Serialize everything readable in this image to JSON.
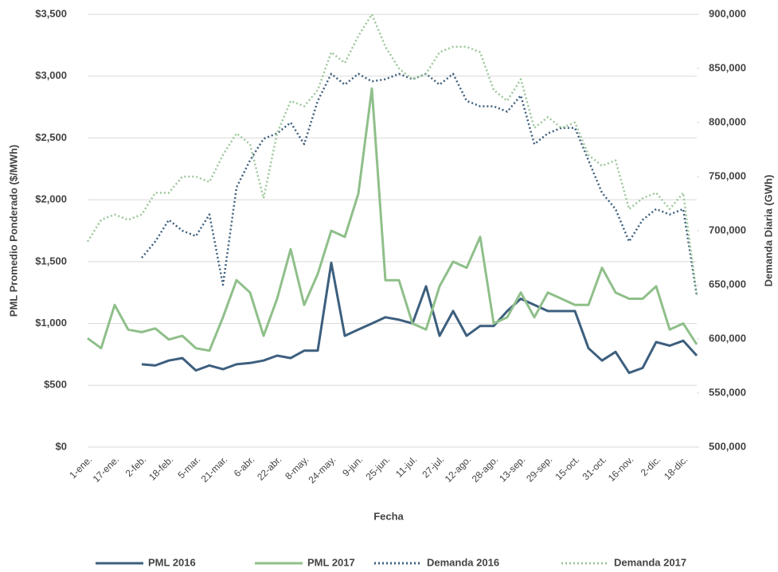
{
  "chart_data": {
    "type": "line",
    "x_label": "Fecha",
    "y_label": "PML Promedio Ponderado ($/MWh)",
    "y2_label": "Demanda Diaria (GWh)",
    "categories": [
      "1-ene.",
      null,
      "17-ene.",
      null,
      "2-feb.",
      null,
      "18-feb.",
      null,
      "5-mar.",
      null,
      "21-mar.",
      null,
      "6-abr.",
      null,
      "22-abr.",
      null,
      "8-may.",
      null,
      "24-may.",
      null,
      "9-jun.",
      null,
      "25-jun.",
      null,
      "11-jul.",
      null,
      "27-jul.",
      null,
      "12-ago.",
      null,
      "28-ago.",
      null,
      "13-sep.",
      null,
      "29-sep.",
      null,
      "15-oct.",
      null,
      "31-oct.",
      null,
      "16-nov.",
      null,
      "2-dic.",
      null,
      "18-dic.",
      null
    ],
    "ylim": [
      0,
      3500
    ],
    "yticks": [
      {
        "value": 0,
        "label": "$0"
      },
      {
        "value": 500,
        "label": "$500"
      },
      {
        "value": 1000,
        "label": "$1,000"
      },
      {
        "value": 1500,
        "label": "$1,500"
      },
      {
        "value": 2000,
        "label": "$2,000"
      },
      {
        "value": 2500,
        "label": "$2,500"
      },
      {
        "value": 3000,
        "label": "$3,000"
      },
      {
        "value": 3500,
        "label": "$3,500"
      }
    ],
    "y2lim": [
      500000,
      900000
    ],
    "y2ticks": [
      {
        "value": 500000,
        "label": "500,000"
      },
      {
        "value": 550000,
        "label": "550,000"
      },
      {
        "value": 600000,
        "label": "600,000"
      },
      {
        "value": 650000,
        "label": "650,000"
      },
      {
        "value": 700000,
        "label": "700,000"
      },
      {
        "value": 750000,
        "label": "750,000"
      },
      {
        "value": 800000,
        "label": "800,000"
      },
      {
        "value": 850000,
        "label": "850,000"
      },
      {
        "value": 900000,
        "label": "900,000"
      }
    ],
    "grid": true,
    "legend": "bottom",
    "series": [
      {
        "name": "PML 2016",
        "color": "#3d5f7e",
        "line_style": "solid",
        "values": [
          null,
          null,
          null,
          null,
          670,
          660,
          700,
          720,
          620,
          660,
          630,
          670,
          680,
          700,
          740,
          720,
          780,
          780,
          1490,
          900,
          950,
          1000,
          1050,
          1030,
          1000,
          1300,
          900,
          1100,
          900,
          980,
          980,
          1100,
          1200,
          1150,
          1100,
          1100,
          1100,
          800,
          700,
          770,
          600,
          640,
          850,
          820,
          860,
          740
        ]
      },
      {
        "name": "PML 2017",
        "color": "#8fbf8a",
        "line_style": "solid",
        "values": [
          880,
          800,
          1150,
          950,
          930,
          960,
          870,
          900,
          800,
          780,
          1050,
          1350,
          1250,
          900,
          1200,
          1600,
          1150,
          1400,
          1750,
          1700,
          2050,
          2900,
          1350,
          1350,
          1000,
          950,
          1300,
          1500,
          1450,
          1700,
          1000,
          1050,
          1250,
          1050,
          1250,
          1200,
          1150,
          1150,
          1450,
          1250,
          1200,
          1200,
          1300,
          950,
          1000,
          830
        ]
      },
      {
        "name": "Demanda 2016",
        "color": "#3d5f7e",
        "line_style": "dotted",
        "axis": "y2",
        "values": [
          null,
          null,
          null,
          null,
          675000,
          690000,
          710000,
          700000,
          695000,
          715000,
          650000,
          740000,
          765000,
          785000,
          790000,
          800000,
          780000,
          820000,
          845000,
          835000,
          845000,
          838000,
          840000,
          845000,
          840000,
          845000,
          835000,
          845000,
          820000,
          815000,
          815000,
          810000,
          825000,
          780000,
          790000,
          795000,
          795000,
          765000,
          735000,
          720000,
          690000,
          710000,
          720000,
          715000,
          720000,
          640000
        ]
      },
      {
        "name": "Demanda 2017",
        "color": "#9cc79a",
        "line_style": "dotted",
        "axis": "y2",
        "values": [
          690000,
          710000,
          715000,
          710000,
          715000,
          735000,
          735000,
          750000,
          750000,
          745000,
          770000,
          790000,
          780000,
          730000,
          790000,
          820000,
          815000,
          830000,
          865000,
          855000,
          880000,
          900000,
          870000,
          850000,
          840000,
          845000,
          865000,
          870000,
          870000,
          865000,
          830000,
          820000,
          840000,
          795000,
          805000,
          795000,
          800000,
          770000,
          760000,
          765000,
          720000,
          730000,
          735000,
          720000,
          735000,
          640000
        ]
      }
    ]
  }
}
